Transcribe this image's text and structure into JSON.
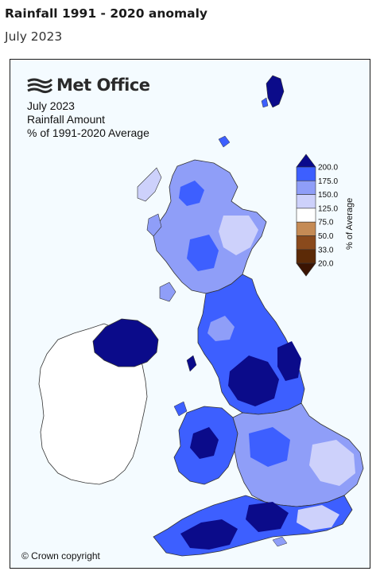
{
  "header": {
    "title": "Rainfall 1991 - 2020 anomaly",
    "subtitle": "July 2023"
  },
  "map": {
    "brand": "Met Office",
    "info_lines": [
      "July 2023",
      "Rainfall Amount",
      "% of 1991-2020 Average"
    ],
    "copyright": "© Crown copyright",
    "legend": {
      "title": "% of Average",
      "labels": [
        "200.0",
        "175.0",
        "150.0",
        "125.0",
        "75.0",
        "50.0",
        "33.0",
        "20.0"
      ],
      "colors": [
        "#0a0a8c",
        "#3d5fff",
        "#8f9ef8",
        "#cdd1fb",
        "#ffffff",
        "#c58b55",
        "#8a4a1c",
        "#5c2a07",
        "#3b1402"
      ]
    },
    "colors": {
      "sea": "#f4fbff",
      "ireland": "#ffffff",
      "very_wet": "#0b0b8a",
      "wet": "#3c48e8",
      "moderate": "#7f8cf2",
      "light": "#c8ccf8"
    }
  }
}
